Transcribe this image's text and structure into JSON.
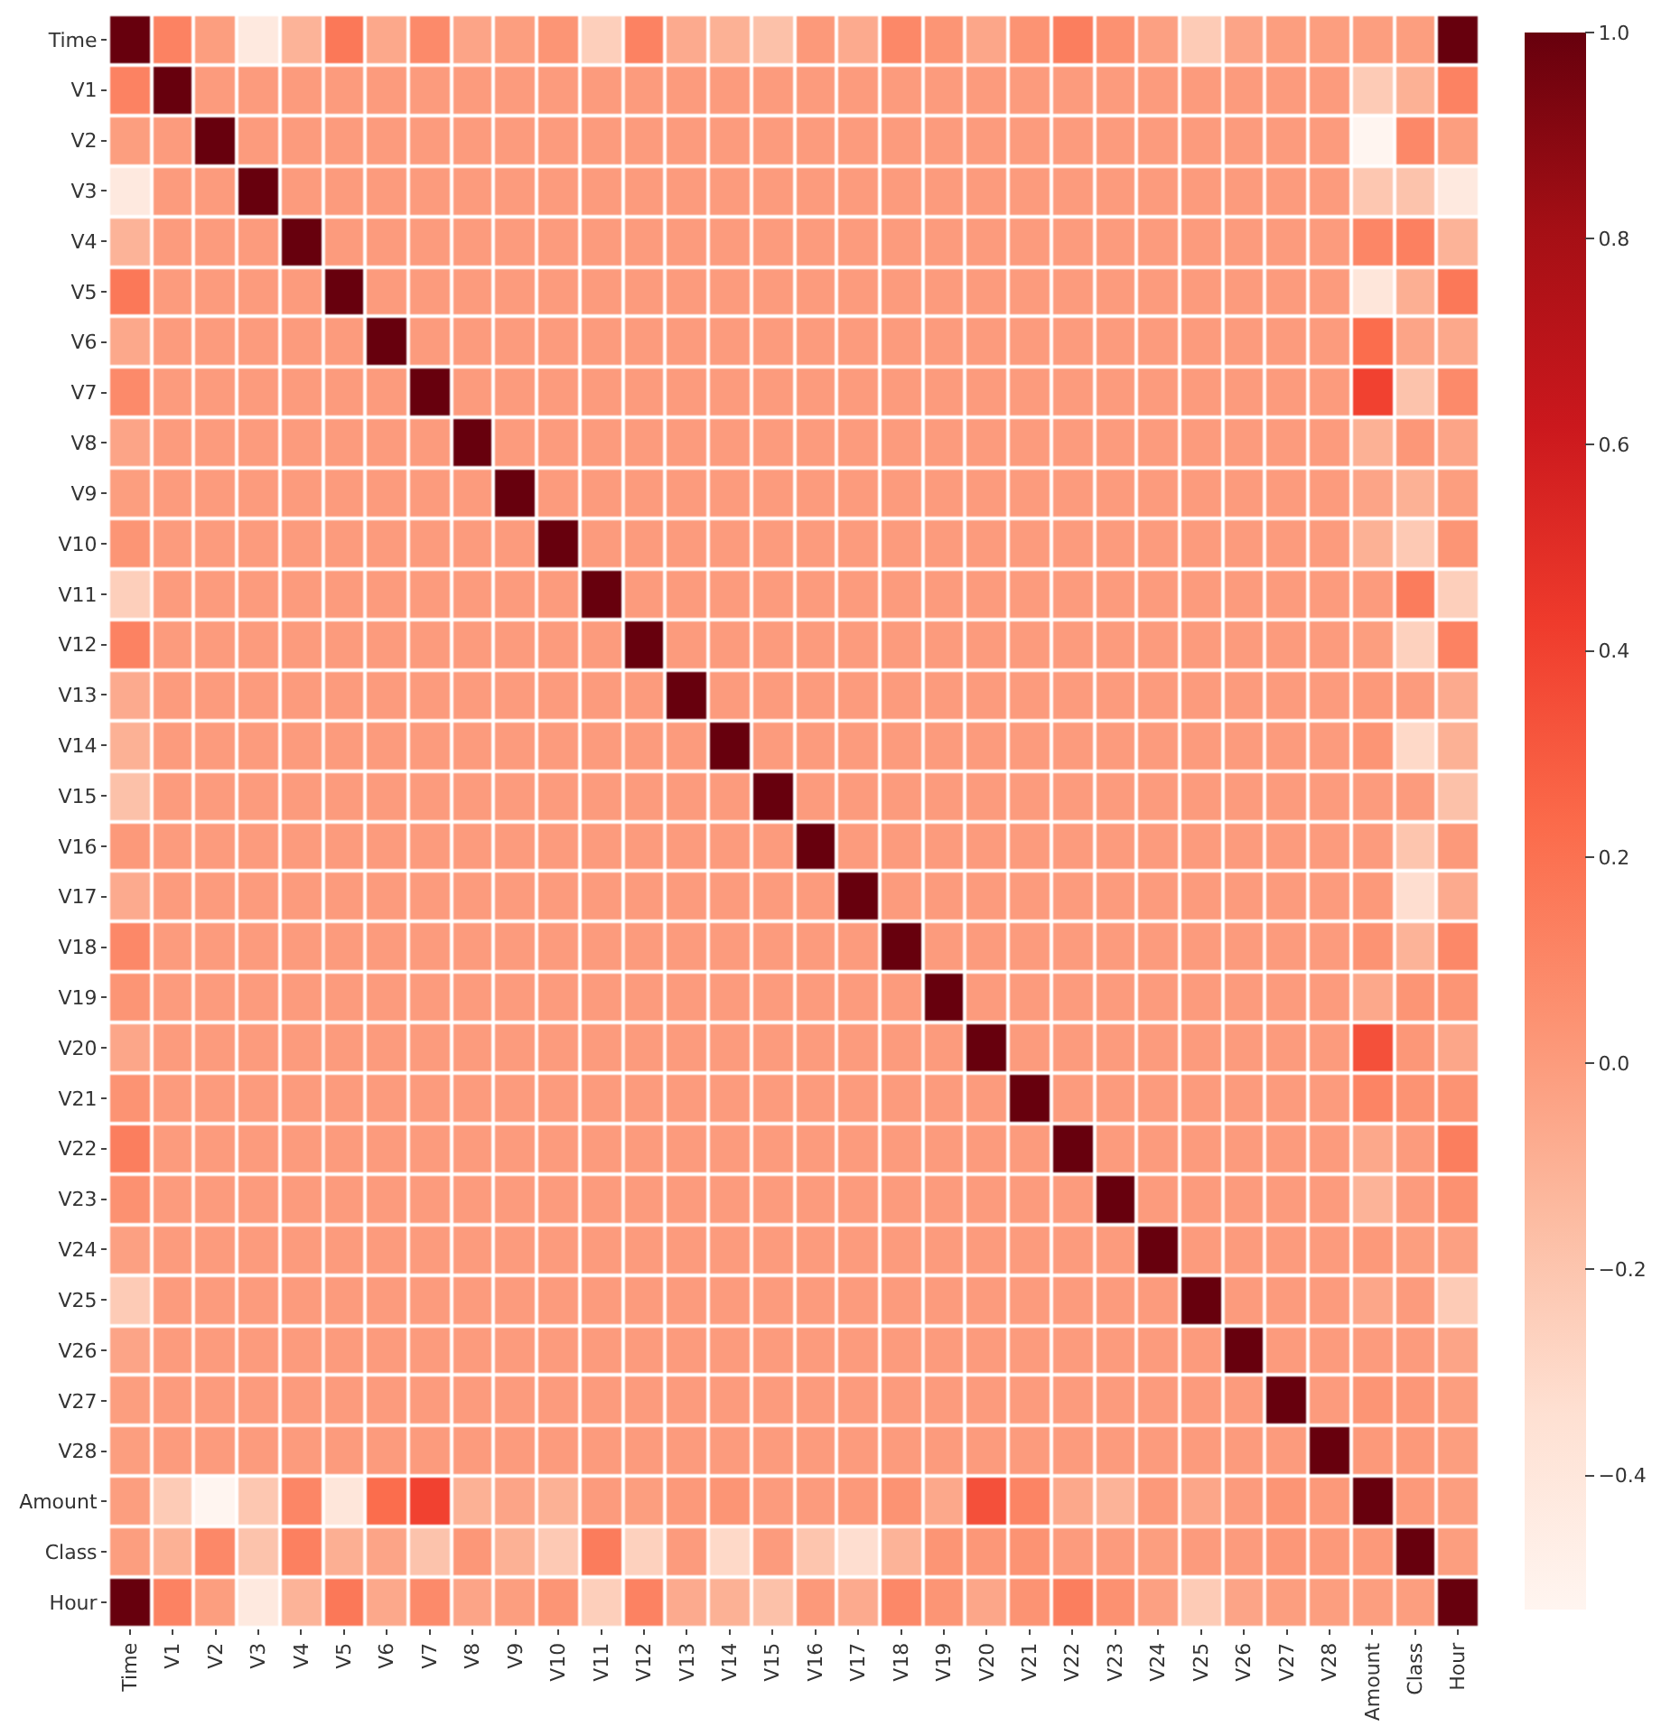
{
  "chart_data": {
    "type": "heatmap",
    "categories": [
      "Time",
      "V1",
      "V2",
      "V3",
      "V4",
      "V5",
      "V6",
      "V7",
      "V8",
      "V9",
      "V10",
      "V11",
      "V12",
      "V13",
      "V14",
      "V15",
      "V16",
      "V17",
      "V18",
      "V19",
      "V20",
      "V21",
      "V22",
      "V23",
      "V24",
      "V25",
      "V26",
      "V27",
      "V28",
      "Amount",
      "Class",
      "Hour"
    ],
    "y_categories": [
      "Time",
      "V1",
      "V2",
      "V3",
      "V4",
      "V5",
      "V6",
      "V7",
      "V8",
      "V9",
      "V10",
      "V11",
      "V12",
      "V13",
      "V14",
      "V15",
      "V16",
      "V17",
      "V18",
      "V19",
      "V20",
      "V21",
      "V22",
      "V23",
      "V24",
      "V25",
      "V26",
      "V27",
      "V28",
      "Amount",
      "Class",
      "Hour"
    ],
    "cells": [
      [
        1,
        0.12,
        -0.01,
        -0.42,
        -0.11,
        0.17,
        -0.06,
        0.08,
        -0.04,
        -0.01,
        0.03,
        -0.25,
        0.12,
        -0.07,
        -0.1,
        -0.18,
        0.01,
        -0.07,
        0.09,
        0.03,
        -0.05,
        0.04,
        0.14,
        0.05,
        -0.02,
        -0.23,
        -0.04,
        -0.01,
        -0.01,
        -0.01,
        -0.01,
        1
      ],
      [
        0.12,
        1,
        0,
        0,
        0,
        0,
        0,
        0,
        0,
        0,
        0,
        0,
        0,
        0,
        0,
        0,
        0,
        0,
        0,
        0,
        0,
        0,
        0,
        0,
        0,
        0,
        0,
        0,
        0,
        -0.23,
        -0.1,
        0.12
      ],
      [
        -0.01,
        0,
        1,
        0,
        0,
        0,
        0,
        0,
        0,
        0,
        0,
        0,
        0,
        0,
        0,
        0,
        0,
        0,
        0,
        0,
        0,
        0,
        0,
        0,
        0,
        0,
        0,
        0,
        0,
        -0.53,
        0.09,
        -0.01
      ],
      [
        -0.42,
        0,
        0,
        1,
        0,
        0,
        0,
        0,
        0,
        0,
        0,
        0,
        0,
        0,
        0,
        0,
        0,
        0,
        0,
        0,
        0,
        0,
        0,
        0,
        0,
        0,
        0,
        0,
        0,
        -0.21,
        -0.19,
        -0.42
      ],
      [
        -0.11,
        0,
        0,
        0,
        1,
        0,
        0,
        0,
        0,
        0,
        0,
        0,
        0,
        0,
        0,
        0,
        0,
        0,
        0,
        0,
        0,
        0,
        0,
        0,
        0,
        0,
        0,
        0,
        0,
        0.1,
        0.13,
        -0.11
      ],
      [
        0.17,
        0,
        0,
        0,
        0,
        1,
        0,
        0,
        0,
        0,
        0,
        0,
        0,
        0,
        0,
        0,
        0,
        0,
        0,
        0,
        0,
        0,
        0,
        0,
        0,
        0,
        0,
        0,
        0,
        -0.39,
        -0.09,
        0.17
      ],
      [
        -0.06,
        0,
        0,
        0,
        0,
        0,
        1,
        0,
        0,
        0,
        0,
        0,
        0,
        0,
        0,
        0,
        0,
        0,
        0,
        0,
        0,
        0,
        0,
        0,
        0,
        0,
        0,
        0,
        0,
        0.22,
        -0.04,
        -0.06
      ],
      [
        0.08,
        0,
        0,
        0,
        0,
        0,
        0,
        1,
        0,
        0,
        0,
        0,
        0,
        0,
        0,
        0,
        0,
        0,
        0,
        0,
        0,
        0,
        0,
        0,
        0,
        0,
        0,
        0,
        0,
        0.4,
        -0.19,
        0.08
      ],
      [
        -0.04,
        0,
        0,
        0,
        0,
        0,
        0,
        0,
        1,
        0,
        0,
        0,
        0,
        0,
        0,
        0,
        0,
        0,
        0,
        0,
        0,
        0,
        0,
        0,
        0,
        0,
        0,
        0,
        0,
        -0.1,
        0.02,
        -0.04
      ],
      [
        -0.01,
        0,
        0,
        0,
        0,
        0,
        0,
        0,
        0,
        1,
        0,
        0,
        0,
        0,
        0,
        0,
        0,
        0,
        0,
        0,
        0,
        0,
        0,
        0,
        0,
        0,
        0,
        0,
        0,
        -0.04,
        -0.1,
        -0.01
      ],
      [
        0.03,
        0,
        0,
        0,
        0,
        0,
        0,
        0,
        0,
        0,
        1,
        0,
        0,
        0,
        0,
        0,
        0,
        0,
        0,
        0,
        0,
        0,
        0,
        0,
        0,
        0,
        0,
        0,
        0,
        -0.1,
        -0.22,
        0.03
      ],
      [
        -0.25,
        0,
        0,
        0,
        0,
        0,
        0,
        0,
        0,
        0,
        0,
        1,
        0,
        0,
        0,
        0,
        0,
        0,
        0,
        0,
        0,
        0,
        0,
        0,
        0,
        0,
        0,
        0,
        0,
        0,
        0.15,
        -0.25
      ],
      [
        0.12,
        0,
        0,
        0,
        0,
        0,
        0,
        0,
        0,
        0,
        0,
        0,
        1,
        0,
        0,
        0,
        0,
        0,
        0,
        0,
        0,
        0,
        0,
        0,
        0,
        0,
        0,
        0,
        0,
        -0.01,
        -0.26,
        0.12
      ],
      [
        -0.07,
        0,
        0,
        0,
        0,
        0,
        0,
        0,
        0,
        0,
        0,
        0,
        0,
        1,
        0,
        0,
        0,
        0,
        0,
        0,
        0,
        0,
        0,
        0,
        0,
        0,
        0,
        0,
        0,
        0.01,
        0,
        -0.07
      ],
      [
        -0.1,
        0,
        0,
        0,
        0,
        0,
        0,
        0,
        0,
        0,
        0,
        0,
        0,
        0,
        1,
        0,
        0,
        0,
        0,
        0,
        0,
        0,
        0,
        0,
        0,
        0,
        0,
        0,
        0,
        0.03,
        -0.3,
        -0.1
      ],
      [
        -0.18,
        0,
        0,
        0,
        0,
        0,
        0,
        0,
        0,
        0,
        0,
        0,
        0,
        0,
        0,
        1,
        0,
        0,
        0,
        0,
        0,
        0,
        0,
        0,
        0,
        0,
        0,
        0,
        0,
        0,
        0,
        -0.18
      ],
      [
        0.01,
        0,
        0,
        0,
        0,
        0,
        0,
        0,
        0,
        0,
        0,
        0,
        0,
        0,
        0,
        0,
        1,
        0,
        0,
        0,
        0,
        0,
        0,
        0,
        0,
        0,
        0,
        0,
        0,
        0,
        -0.2,
        0.01
      ],
      [
        -0.07,
        0,
        0,
        0,
        0,
        0,
        0,
        0,
        0,
        0,
        0,
        0,
        0,
        0,
        0,
        0,
        0,
        1,
        0,
        0,
        0,
        0,
        0,
        0,
        0,
        0,
        0,
        0,
        0,
        0.01,
        -0.33,
        -0.07
      ],
      [
        0.09,
        0,
        0,
        0,
        0,
        0,
        0,
        0,
        0,
        0,
        0,
        0,
        0,
        0,
        0,
        0,
        0,
        0,
        1,
        0,
        0,
        0,
        0,
        0,
        0,
        0,
        0,
        0,
        0,
        0.04,
        -0.11,
        0.09
      ],
      [
        0.03,
        0,
        0,
        0,
        0,
        0,
        0,
        0,
        0,
        0,
        0,
        0,
        0,
        0,
        0,
        0,
        0,
        0,
        0,
        1,
        0,
        0,
        0,
        0,
        0,
        0,
        0,
        0,
        0,
        -0.06,
        0.03,
        0.03
      ],
      [
        -0.05,
        0,
        0,
        0,
        0,
        0,
        0,
        0,
        0,
        0,
        0,
        0,
        0,
        0,
        0,
        0,
        0,
        0,
        0,
        0,
        1,
        0,
        0,
        0,
        0,
        0,
        0,
        0,
        0,
        0.34,
        0.02,
        -0.05
      ],
      [
        0.04,
        0,
        0,
        0,
        0,
        0,
        0,
        0,
        0,
        0,
        0,
        0,
        0,
        0,
        0,
        0,
        0,
        0,
        0,
        0,
        0,
        1,
        0,
        0,
        0,
        0,
        0,
        0,
        0,
        0.11,
        0.04,
        0.04
      ],
      [
        0.14,
        0,
        0,
        0,
        0,
        0,
        0,
        0,
        0,
        0,
        0,
        0,
        0,
        0,
        0,
        0,
        0,
        0,
        0,
        0,
        0,
        0,
        1,
        0,
        0,
        0,
        0,
        0,
        0,
        -0.06,
        0,
        0.14
      ],
      [
        0.05,
        0,
        0,
        0,
        0,
        0,
        0,
        0,
        0,
        0,
        0,
        0,
        0,
        0,
        0,
        0,
        0,
        0,
        0,
        0,
        0,
        0,
        0,
        1,
        0,
        0,
        0,
        0,
        0,
        -0.11,
        0,
        0.05
      ],
      [
        -0.02,
        0,
        0,
        0,
        0,
        0,
        0,
        0,
        0,
        0,
        0,
        0,
        0,
        0,
        0,
        0,
        0,
        0,
        0,
        0,
        0,
        0,
        0,
        0,
        1,
        0,
        0,
        0,
        0,
        0.01,
        -0.01,
        -0.02
      ],
      [
        -0.23,
        0,
        0,
        0,
        0,
        0,
        0,
        0,
        0,
        0,
        0,
        0,
        0,
        0,
        0,
        0,
        0,
        0,
        0,
        0,
        0,
        0,
        0,
        0,
        0,
        1,
        0,
        0,
        0,
        -0.05,
        0,
        -0.23
      ],
      [
        -0.04,
        0,
        0,
        0,
        0,
        0,
        0,
        0,
        0,
        0,
        0,
        0,
        0,
        0,
        0,
        0,
        0,
        0,
        0,
        0,
        0,
        0,
        0,
        0,
        0,
        0,
        1,
        0,
        0,
        0,
        0,
        -0.04
      ],
      [
        -0.01,
        0,
        0,
        0,
        0,
        0,
        0,
        0,
        0,
        0,
        0,
        0,
        0,
        0,
        0,
        0,
        0,
        0,
        0,
        0,
        0,
        0,
        0,
        0,
        0,
        0,
        0,
        1,
        0,
        0.03,
        0.02,
        -0.01
      ],
      [
        -0.01,
        0,
        0,
        0,
        0,
        0,
        0,
        0,
        0,
        0,
        0,
        0,
        0,
        0,
        0,
        0,
        0,
        0,
        0,
        0,
        0,
        0,
        0,
        0,
        0,
        0,
        0,
        0,
        1,
        0.01,
        0.01,
        -0.01
      ],
      [
        -0.01,
        -0.23,
        -0.53,
        -0.21,
        0.1,
        -0.39,
        0.22,
        0.4,
        -0.1,
        -0.04,
        -0.1,
        0,
        -0.01,
        0.01,
        0.03,
        0,
        0,
        0.01,
        0.04,
        -0.06,
        0.34,
        0.11,
        -0.06,
        -0.11,
        0.01,
        -0.05,
        0,
        0.03,
        0.01,
        1,
        0.01,
        -0.01
      ],
      [
        -0.01,
        -0.1,
        0.09,
        -0.19,
        0.13,
        -0.09,
        -0.04,
        -0.19,
        0.02,
        -0.1,
        -0.22,
        0.15,
        -0.26,
        0,
        -0.3,
        0,
        -0.2,
        -0.33,
        -0.11,
        0.03,
        0.02,
        0.04,
        0,
        0,
        -0.01,
        0,
        0,
        0.02,
        0.01,
        0.01,
        1,
        -0.01
      ],
      [
        1,
        0.12,
        -0.01,
        -0.42,
        -0.11,
        0.17,
        -0.06,
        0.08,
        -0.04,
        -0.01,
        0.03,
        -0.25,
        0.12,
        -0.07,
        -0.1,
        -0.18,
        0.01,
        -0.07,
        0.09,
        0.03,
        -0.05,
        0.04,
        0.14,
        0.05,
        -0.02,
        -0.23,
        -0.04,
        -0.01,
        -0.01,
        -0.01,
        -0.01,
        1
      ]
    ],
    "clim": [
      -0.53,
      1.0
    ],
    "cticks": [
      {
        "value": -0.4,
        "label": "−0.4"
      },
      {
        "value": -0.2,
        "label": "−0.2"
      },
      {
        "value": 0,
        "label": "0.0"
      },
      {
        "value": 0.2,
        "label": "0.2"
      },
      {
        "value": 0.4,
        "label": "0.4"
      },
      {
        "value": 0.6,
        "label": "0.6"
      },
      {
        "value": 0.8,
        "label": "0.8"
      },
      {
        "value": 1.0,
        "label": "1.0"
      }
    ]
  }
}
